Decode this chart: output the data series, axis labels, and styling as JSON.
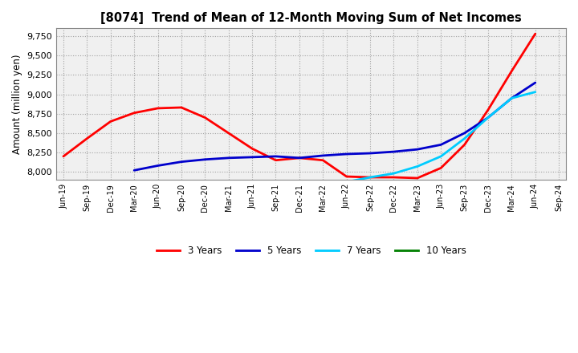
{
  "title": "[8074]  Trend of Mean of 12-Month Moving Sum of Net Incomes",
  "ylabel": "Amount (million yen)",
  "background_color": "#ffffff",
  "plot_bg_color": "#f0f0f0",
  "grid_color": "#999999",
  "ylim": [
    7900,
    9850
  ],
  "yticks": [
    8000,
    8250,
    8500,
    8750,
    9000,
    9250,
    9500,
    9750
  ],
  "x_labels": [
    "Jun-19",
    "Sep-19",
    "Dec-19",
    "Mar-20",
    "Jun-20",
    "Sep-20",
    "Dec-20",
    "Mar-21",
    "Jun-21",
    "Sep-21",
    "Dec-21",
    "Mar-22",
    "Jun-22",
    "Sep-22",
    "Dec-22",
    "Mar-23",
    "Jun-23",
    "Sep-23",
    "Dec-23",
    "Mar-24",
    "Jun-24",
    "Sep-24"
  ],
  "series": {
    "3 Years": {
      "color": "#ff0000",
      "linewidth": 2.0,
      "data": [
        8200,
        8430,
        8650,
        8760,
        8820,
        8830,
        8700,
        8500,
        8300,
        8150,
        8180,
        8150,
        7940,
        7930,
        7930,
        7920,
        8050,
        8350,
        8800,
        9300,
        9780,
        null
      ]
    },
    "5 Years": {
      "color": "#0000cc",
      "linewidth": 2.0,
      "data": [
        null,
        null,
        null,
        8020,
        8080,
        8130,
        8160,
        8180,
        8190,
        8200,
        8180,
        8210,
        8230,
        8240,
        8260,
        8290,
        8350,
        8500,
        8700,
        8950,
        9150,
        null
      ]
    },
    "7 Years": {
      "color": "#00ccff",
      "linewidth": 2.0,
      "data": [
        null,
        null,
        null,
        null,
        null,
        null,
        null,
        null,
        null,
        null,
        null,
        null,
        7870,
        7930,
        7980,
        8070,
        8200,
        8430,
        8700,
        8950,
        9030,
        null
      ]
    },
    "10 Years": {
      "color": "#008000",
      "linewidth": 2.0,
      "data": [
        null,
        null,
        null,
        null,
        null,
        null,
        null,
        null,
        null,
        null,
        null,
        null,
        null,
        null,
        null,
        null,
        null,
        null,
        null,
        null,
        null,
        null
      ]
    }
  },
  "legend_labels": [
    "3 Years",
    "5 Years",
    "7 Years",
    "10 Years"
  ],
  "legend_colors": [
    "#ff0000",
    "#0000cc",
    "#00ccff",
    "#008000"
  ]
}
